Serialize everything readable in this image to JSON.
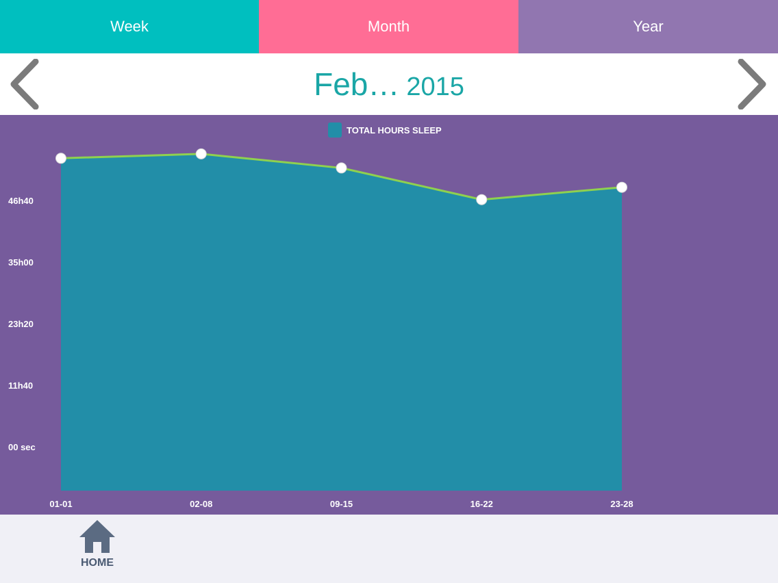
{
  "tabs": [
    {
      "label": "Week"
    },
    {
      "label": "Month"
    },
    {
      "label": "Year"
    }
  ],
  "header": {
    "month": "Feb…",
    "year": "2015"
  },
  "bottom_bar": {
    "home_label": "HOME"
  },
  "colors": {
    "week_tab": "#00bfbf",
    "month_tab": "#ff6d95",
    "year_tab": "#9176b0",
    "chart_background": "#765b9c",
    "area_fill": "#228ea8",
    "line": "#8fd14f"
  },
  "chart_data": {
    "type": "area",
    "legend": "TOTAL HOURS SLEEP",
    "legend_placement": "top-center",
    "categories": [
      "01-01",
      "02-08",
      "09-15",
      "16-22",
      "23-28"
    ],
    "series": [
      {
        "name": "TOTAL HOURS SLEEP",
        "values_minutes": [
          3280,
          3330,
          3170,
          2810,
          2950
        ]
      }
    ],
    "y_ticks": [
      {
        "minutes": 0,
        "label": "00 sec"
      },
      {
        "minutes": 700,
        "label": "11h40"
      },
      {
        "minutes": 1400,
        "label": "23h20"
      },
      {
        "minutes": 2100,
        "label": "35h00"
      },
      {
        "minutes": 2800,
        "label": "46h40"
      }
    ],
    "grid": false
  }
}
